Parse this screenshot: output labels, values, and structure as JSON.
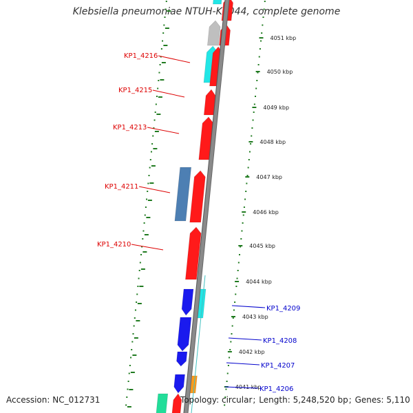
{
  "title": "Klebsiella pneumoniae NTUH-K2044, complete genome",
  "footer": {
    "accession_label": "Accession:",
    "accession": "NC_012731",
    "topology_label": "Topology:",
    "topology": "circular",
    "length_label": "Length:",
    "length": "5,248,520 bp",
    "genes_label": "Genes:",
    "genes": "5,110"
  },
  "colors": {
    "backbone": "#8a8a8a",
    "tick": "#1f7a1f",
    "cds_red": "#ff1a1a",
    "cds_blue": "#1a1aee",
    "cds_cyan": "#22e6e6",
    "cds_grey": "#bfbfbf",
    "cds_steel": "#4d7fb3",
    "cds_orange": "#ff9a1a",
    "cds_green": "#22dd99",
    "teal": "#40c0c0",
    "label_left": "#dd0000",
    "label_right": "#0000cc"
  },
  "kbp_ticks": [
    "4051 kbp",
    "4050 kbp",
    "4049 kbp",
    "4048 kbp",
    "4047 kbp",
    "4046 kbp",
    "4045 kbp",
    "4044 kbp",
    "4043 kbp",
    "4042 kbp",
    "4041 kbp"
  ],
  "left_labels": [
    "KP1_4216",
    "KP1_4215",
    "KP1_4213",
    "KP1_4211",
    "KP1_4210"
  ],
  "right_labels": [
    "KP1_4209",
    "KP1_4208",
    "KP1_4207",
    "KP1_4206"
  ]
}
